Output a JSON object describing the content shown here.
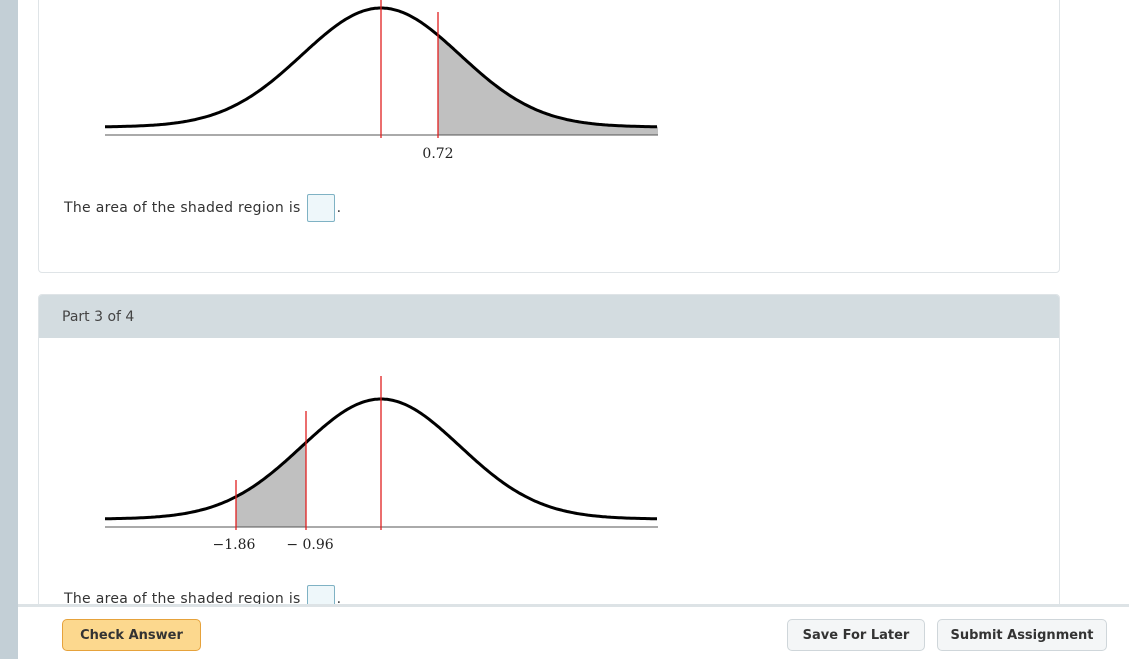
{
  "part2": {
    "graph": {
      "label": "0.72"
    },
    "prompt": "The area of the shaded region is",
    "suffix": "."
  },
  "part3": {
    "header": "Part 3 of 4",
    "graph": {
      "labels": [
        "−1.86",
        "− 0.96"
      ]
    },
    "prompt": "The area of the shaded region is",
    "suffix": "."
  },
  "footer": {
    "check_answer": "Check Answer",
    "save_for_later": "Save For Later",
    "submit_assignment": "Submit Assignment"
  }
}
